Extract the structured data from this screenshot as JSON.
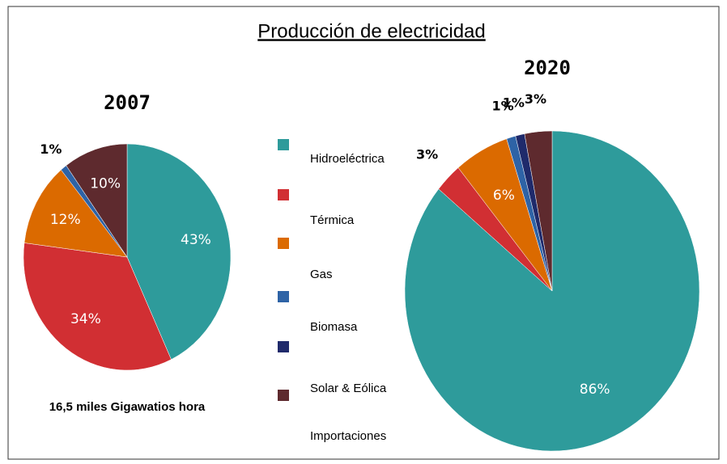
{
  "chart_data": {
    "type": "pie",
    "title": "Producción de electricidad",
    "categories": [
      "Hidroeléctrica",
      "Térmica",
      "Gas",
      "Biomasa",
      "Solar & Eólica",
      "Importaciones"
    ],
    "colors": [
      "#2e9b9b",
      "#d12f33",
      "#db6a00",
      "#2e63a6",
      "#1f2a6b",
      "#5e2a2e"
    ],
    "pies": [
      {
        "label": "2007",
        "values": [
          43,
          34,
          12,
          1,
          0,
          10
        ],
        "value_labels": [
          "43%",
          "34%",
          "12%",
          "1%",
          null,
          "10%"
        ],
        "note": "16,5 miles Gigawatios hora"
      },
      {
        "label": "2020",
        "values": [
          86,
          3,
          6,
          1,
          1,
          3
        ],
        "value_labels": [
          "86%",
          "3%",
          "6%",
          "1%",
          "1%",
          "3%"
        ]
      }
    ]
  }
}
